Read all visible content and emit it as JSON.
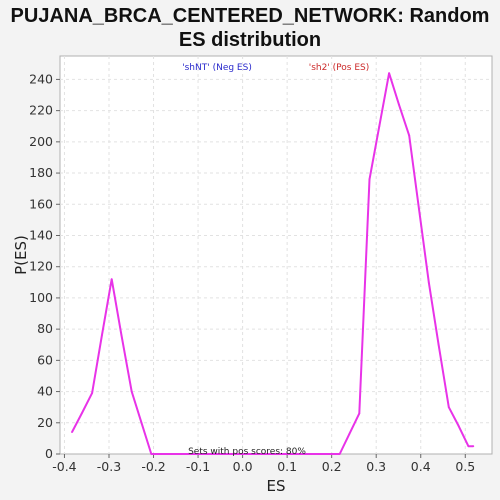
{
  "chart_data": {
    "type": "line",
    "title_line1": "PUJANA_BRCA_CENTERED_NETWORK: Random",
    "title_line2": "ES distribution",
    "xlabel": "ES",
    "ylabel": "P(ES)",
    "xlim": [
      -0.41,
      0.56
    ],
    "ylim": [
      0,
      255
    ],
    "x_ticks": [
      -0.4,
      -0.3,
      -0.2,
      -0.1,
      0.0,
      0.1,
      0.2,
      0.3,
      0.4,
      0.5
    ],
    "x_tick_labels": [
      "-0.4",
      "-0.3",
      "-0.2",
      "-0.1",
      "0.0",
      "0.1",
      "0.2",
      "0.3",
      "0.4",
      "0.5"
    ],
    "y_ticks": [
      0,
      20,
      40,
      60,
      80,
      100,
      120,
      140,
      160,
      180,
      200,
      220,
      240
    ],
    "y_tick_labels": [
      "0",
      "20",
      "40",
      "60",
      "80",
      "100",
      "120",
      "140",
      "160",
      "180",
      "200",
      "220",
      "240"
    ],
    "grid": true,
    "series": [
      {
        "color": "#e833e8",
        "x": [
          -0.383,
          -0.361,
          -0.338,
          -0.316,
          -0.294,
          -0.272,
          -0.249,
          -0.227,
          -0.205,
          -0.183,
          -0.16,
          -0.138,
          -0.116,
          -0.094,
          -0.071,
          -0.049,
          -0.027,
          -0.005,
          0.018,
          0.04,
          0.062,
          0.084,
          0.107,
          0.129,
          0.151,
          0.173,
          0.196,
          0.218,
          0.24,
          0.262,
          0.285,
          0.307,
          0.329,
          0.351,
          0.374,
          0.396,
          0.418,
          0.44,
          0.463,
          0.485,
          0.507,
          0.518
        ],
        "y": [
          14,
          26,
          39,
          76,
          112,
          76,
          40,
          20,
          0,
          0,
          0,
          0,
          0,
          0,
          0,
          0,
          0,
          0,
          0,
          0,
          0,
          0,
          0,
          0,
          0,
          0,
          0,
          0,
          13,
          26,
          176,
          210,
          244,
          224,
          204,
          157,
          110,
          70,
          30,
          18,
          5,
          5
        ]
      }
    ],
    "legend": [
      {
        "label": "'shNT' (Neg ES)",
        "color": "#2a2acc"
      },
      {
        "label": "'sh2' (Pos ES)",
        "color": "#cc2a2a"
      }
    ],
    "annotation": "Sets with pos scores: 80%"
  }
}
